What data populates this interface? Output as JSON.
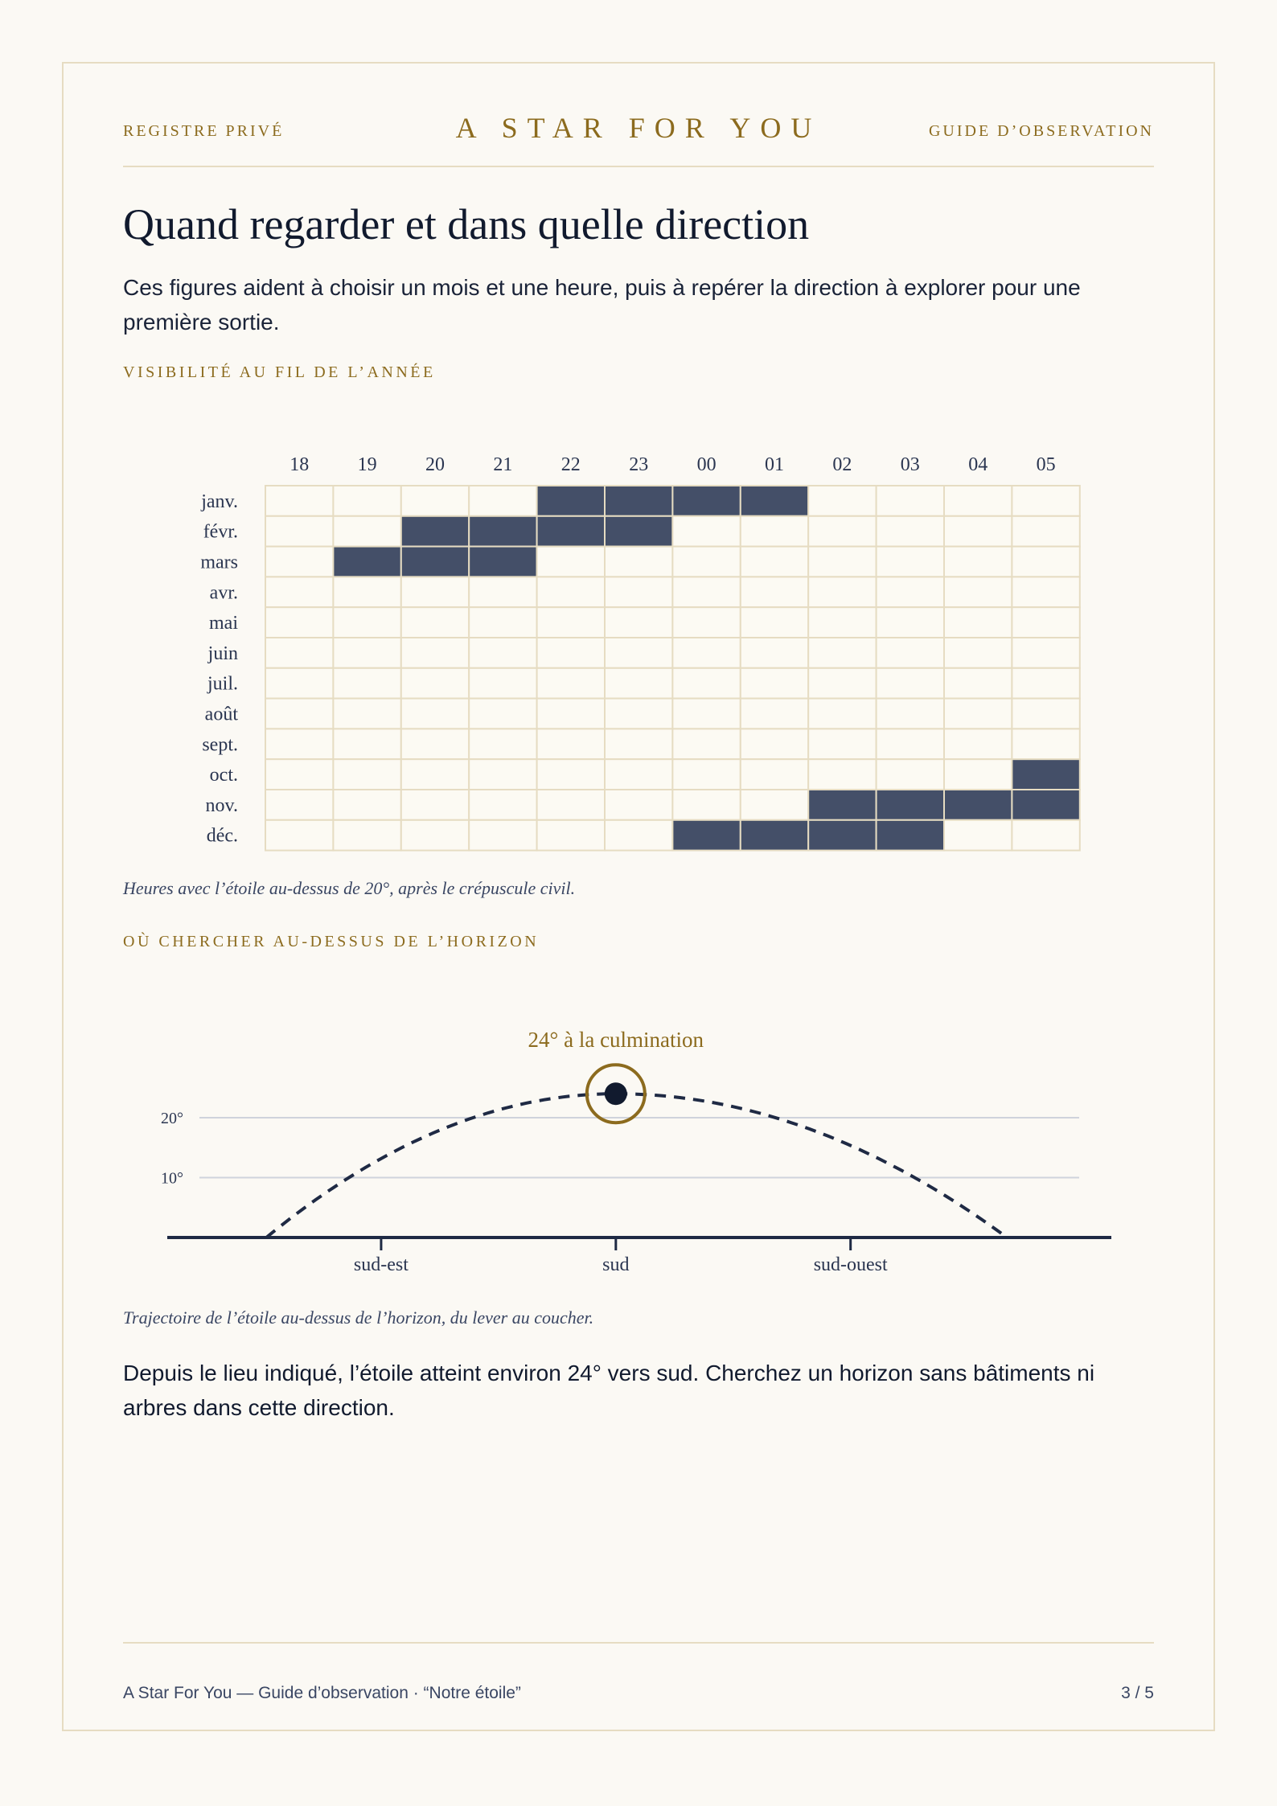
{
  "header": {
    "left": "REGISTRE PRIVÉ",
    "center": "A STAR FOR YOU",
    "right": "GUIDE D’OBSERVATION"
  },
  "title": "Quand regarder et dans quelle direction",
  "intro": "Ces figures aident à choisir un mois et une heure, puis à repérer la direction à explorer pour une première sortie.",
  "section1": {
    "label": "VISIBILITÉ AU FIL DE L’ANNÉE",
    "caption": "Heures avec l’étoile au-dessus de 20°, après le crépuscule civil."
  },
  "section2": {
    "label": "OÙ CHERCHER AU-DESSUS DE L’HORIZON",
    "caption": "Trajectoire de l’étoile au-dessus de l’horizon, du lever au coucher."
  },
  "body_text": "Depuis le lieu indiqué, l’étoile atteint environ 24° vers sud. Cherchez un horizon sans bâtiments ni arbres dans cette direction.",
  "footer": {
    "left": "A Star For You — Guide d’observation · “Notre étoile”",
    "right": "3 / 5"
  },
  "colors": {
    "accent": "#8c6b1e",
    "cell_filled": "#444f68",
    "grid": "#e6dcc2",
    "ink": "#1a2338"
  },
  "chart_data": [
    {
      "type": "heatmap",
      "x": [
        "18",
        "19",
        "20",
        "21",
        "22",
        "23",
        "00",
        "01",
        "02",
        "03",
        "04",
        "05"
      ],
      "y": [
        "janv.",
        "févr.",
        "mars",
        "avr.",
        "mai",
        "juin",
        "juil.",
        "août",
        "sept.",
        "oct.",
        "nov.",
        "déc."
      ],
      "values": [
        [
          0,
          0,
          0,
          0,
          1,
          1,
          1,
          1,
          0,
          0,
          0,
          0
        ],
        [
          0,
          0,
          1,
          1,
          1,
          1,
          0,
          0,
          0,
          0,
          0,
          0
        ],
        [
          0,
          1,
          1,
          1,
          0,
          0,
          0,
          0,
          0,
          0,
          0,
          0
        ],
        [
          0,
          0,
          0,
          0,
          0,
          0,
          0,
          0,
          0,
          0,
          0,
          0
        ],
        [
          0,
          0,
          0,
          0,
          0,
          0,
          0,
          0,
          0,
          0,
          0,
          0
        ],
        [
          0,
          0,
          0,
          0,
          0,
          0,
          0,
          0,
          0,
          0,
          0,
          0
        ],
        [
          0,
          0,
          0,
          0,
          0,
          0,
          0,
          0,
          0,
          0,
          0,
          0
        ],
        [
          0,
          0,
          0,
          0,
          0,
          0,
          0,
          0,
          0,
          0,
          0,
          0
        ],
        [
          0,
          0,
          0,
          0,
          0,
          0,
          0,
          0,
          0,
          0,
          0,
          0
        ],
        [
          0,
          0,
          0,
          0,
          0,
          0,
          0,
          0,
          0,
          0,
          0,
          1
        ],
        [
          0,
          0,
          0,
          0,
          0,
          0,
          0,
          0,
          1,
          1,
          1,
          1
        ],
        [
          0,
          0,
          0,
          0,
          0,
          0,
          1,
          1,
          1,
          1,
          0,
          0
        ]
      ]
    },
    {
      "type": "line",
      "x_ticks": [
        "sud-est",
        "sud",
        "sud-ouest"
      ],
      "x_tick_azimuths": [
        135,
        180,
        225
      ],
      "y_ticks": [
        "10°",
        "20°"
      ],
      "y_tick_values": [
        10,
        20
      ],
      "xlim": [
        94,
        275
      ],
      "ylim": [
        0,
        24
      ],
      "rise_azimuth": 113,
      "set_azimuth": 255,
      "culmination_azimuth": 180,
      "culmination_altitude": 24,
      "annotation": "24° à la culmination"
    }
  ]
}
